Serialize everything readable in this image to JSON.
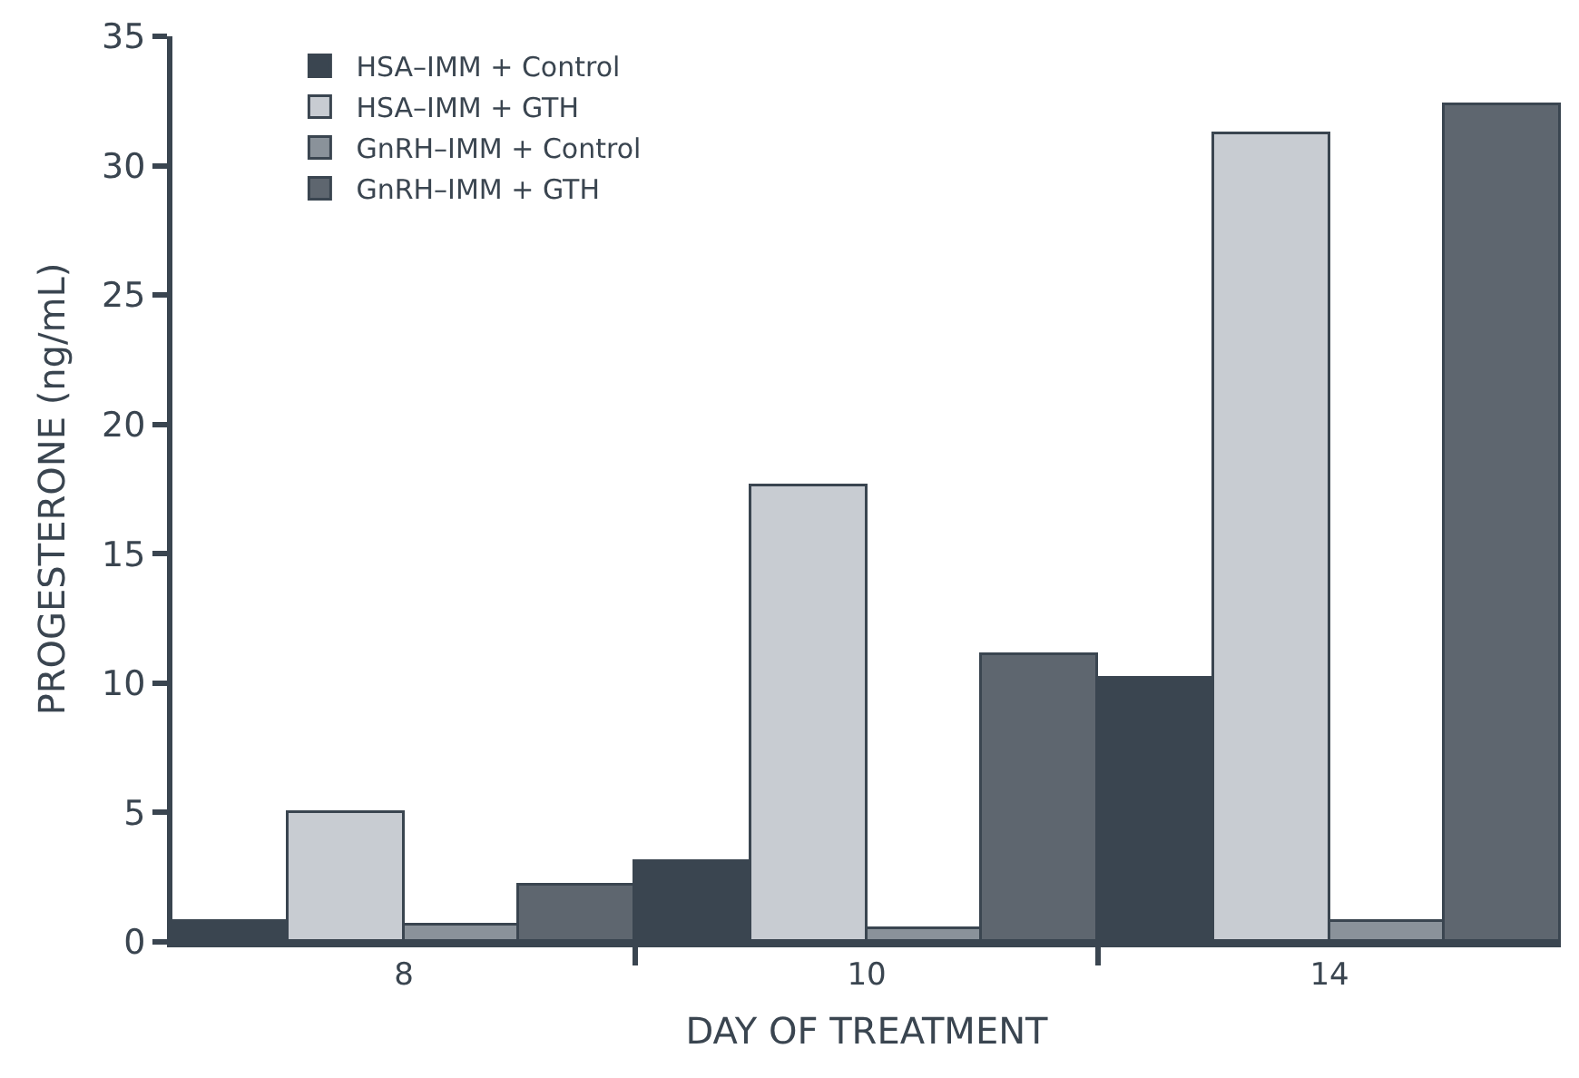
{
  "chart_data": {
    "type": "bar",
    "xlabel": "DAY OF TREATMENT",
    "ylabel": "PROGESTERONE (ng/mL)",
    "categories": [
      "8",
      "10",
      "14"
    ],
    "series": [
      {
        "name": "HSA–IMM + Control",
        "color": "#3a4550",
        "values": [
          0.8,
          3.1,
          10.2
        ]
      },
      {
        "name": "HSA–IMM + GTH",
        "color": "#c8ccd2",
        "values": [
          5.0,
          17.6,
          31.2
        ]
      },
      {
        "name": "GnRH–IMM + Control",
        "color": "#8a929a",
        "values": [
          0.6,
          0.5,
          0.8
        ]
      },
      {
        "name": "GnRH–IMM + GTH",
        "color": "#5e666f",
        "values": [
          2.2,
          11.1,
          32.3
        ]
      }
    ],
    "ylim": [
      0,
      35
    ],
    "yticks": [
      0,
      5,
      10,
      15,
      20,
      25,
      30,
      35
    ],
    "legend": "top left"
  }
}
